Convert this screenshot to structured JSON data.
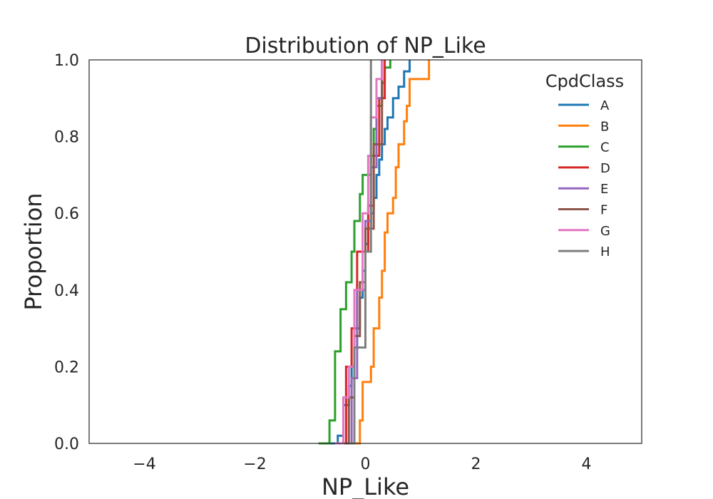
{
  "chart_data": {
    "type": "line",
    "subtype": "ecdf-step",
    "title": "Distribution of NP_Like",
    "xlabel": "NP_Like",
    "ylabel": "Proportion",
    "xlim": [
      -5,
      5
    ],
    "ylim": [
      0,
      1
    ],
    "xticks": [
      -4,
      -2,
      0,
      2,
      4
    ],
    "xtick_labels": [
      "−4",
      "−2",
      "0",
      "2",
      "4"
    ],
    "yticks": [
      0,
      0.2,
      0.4,
      0.6,
      0.8,
      1.0
    ],
    "ytick_labels": [
      "0.0",
      "0.2",
      "0.4",
      "0.6",
      "0.8",
      "1.0"
    ],
    "grid": false,
    "legend": {
      "title": "CpdClass",
      "position": "top-right"
    },
    "series": [
      {
        "name": "A",
        "color": "#1f77b4",
        "x": [
          -0.8,
          -0.5,
          -0.4,
          -0.3,
          -0.25,
          -0.2,
          -0.15,
          -0.1,
          -0.05,
          0.0,
          0.05,
          0.1,
          0.15,
          0.2,
          0.25,
          0.3,
          0.35,
          0.4,
          0.5,
          0.6,
          0.7,
          0.8
        ],
        "y": [
          0.0,
          0.02,
          0.1,
          0.15,
          0.2,
          0.25,
          0.3,
          0.38,
          0.45,
          0.52,
          0.56,
          0.6,
          0.64,
          0.7,
          0.74,
          0.78,
          0.82,
          0.85,
          0.9,
          0.93,
          0.97,
          1.0
        ]
      },
      {
        "name": "B",
        "color": "#ff7f0e",
        "x": [
          -0.2,
          -0.1,
          -0.05,
          0.1,
          0.15,
          0.25,
          0.3,
          0.35,
          0.4,
          0.5,
          0.55,
          0.6,
          0.7,
          0.75,
          0.8,
          1.15
        ],
        "y": [
          0.0,
          0.06,
          0.16,
          0.2,
          0.3,
          0.38,
          0.45,
          0.55,
          0.6,
          0.64,
          0.72,
          0.78,
          0.84,
          0.88,
          0.95,
          1.0
        ]
      },
      {
        "name": "C",
        "color": "#2ca02c",
        "x": [
          -0.85,
          -0.65,
          -0.55,
          -0.45,
          -0.35,
          -0.25,
          -0.2,
          -0.1,
          -0.05,
          0.1,
          0.15,
          0.2,
          0.3,
          0.35,
          0.45
        ],
        "y": [
          0.0,
          0.06,
          0.24,
          0.35,
          0.42,
          0.5,
          0.58,
          0.65,
          0.7,
          0.75,
          0.82,
          0.88,
          0.94,
          0.98,
          1.0
        ]
      },
      {
        "name": "D",
        "color": "#d62728",
        "x": [
          -0.55,
          -0.35,
          -0.25,
          -0.15,
          0.05,
          0.15,
          0.25,
          0.35
        ],
        "y": [
          0.0,
          0.2,
          0.3,
          0.5,
          0.62,
          0.75,
          0.9,
          1.0
        ]
      },
      {
        "name": "E",
        "color": "#9467bd",
        "x": [
          -0.45,
          -0.25,
          -0.15,
          0.0,
          0.1,
          0.2,
          0.3
        ],
        "y": [
          0.0,
          0.17,
          0.4,
          0.58,
          0.72,
          0.9,
          1.0
        ]
      },
      {
        "name": "F",
        "color": "#8c564b",
        "x": [
          -0.4,
          -0.3,
          -0.2,
          -0.1,
          0.0,
          0.15,
          0.3
        ],
        "y": [
          0.0,
          0.12,
          0.28,
          0.42,
          0.56,
          0.78,
          1.0
        ]
      },
      {
        "name": "G",
        "color": "#e377c2",
        "x": [
          -0.55,
          -0.4,
          -0.3,
          -0.2,
          -0.05,
          0.05,
          0.1,
          0.2,
          0.3
        ],
        "y": [
          0.0,
          0.12,
          0.2,
          0.4,
          0.6,
          0.75,
          0.85,
          0.95,
          1.0
        ]
      },
      {
        "name": "H",
        "color": "#7f7f7f",
        "x": [
          -0.3,
          -0.2,
          0.0,
          0.1
        ],
        "y": [
          0.0,
          0.25,
          0.5,
          1.0
        ]
      }
    ]
  }
}
